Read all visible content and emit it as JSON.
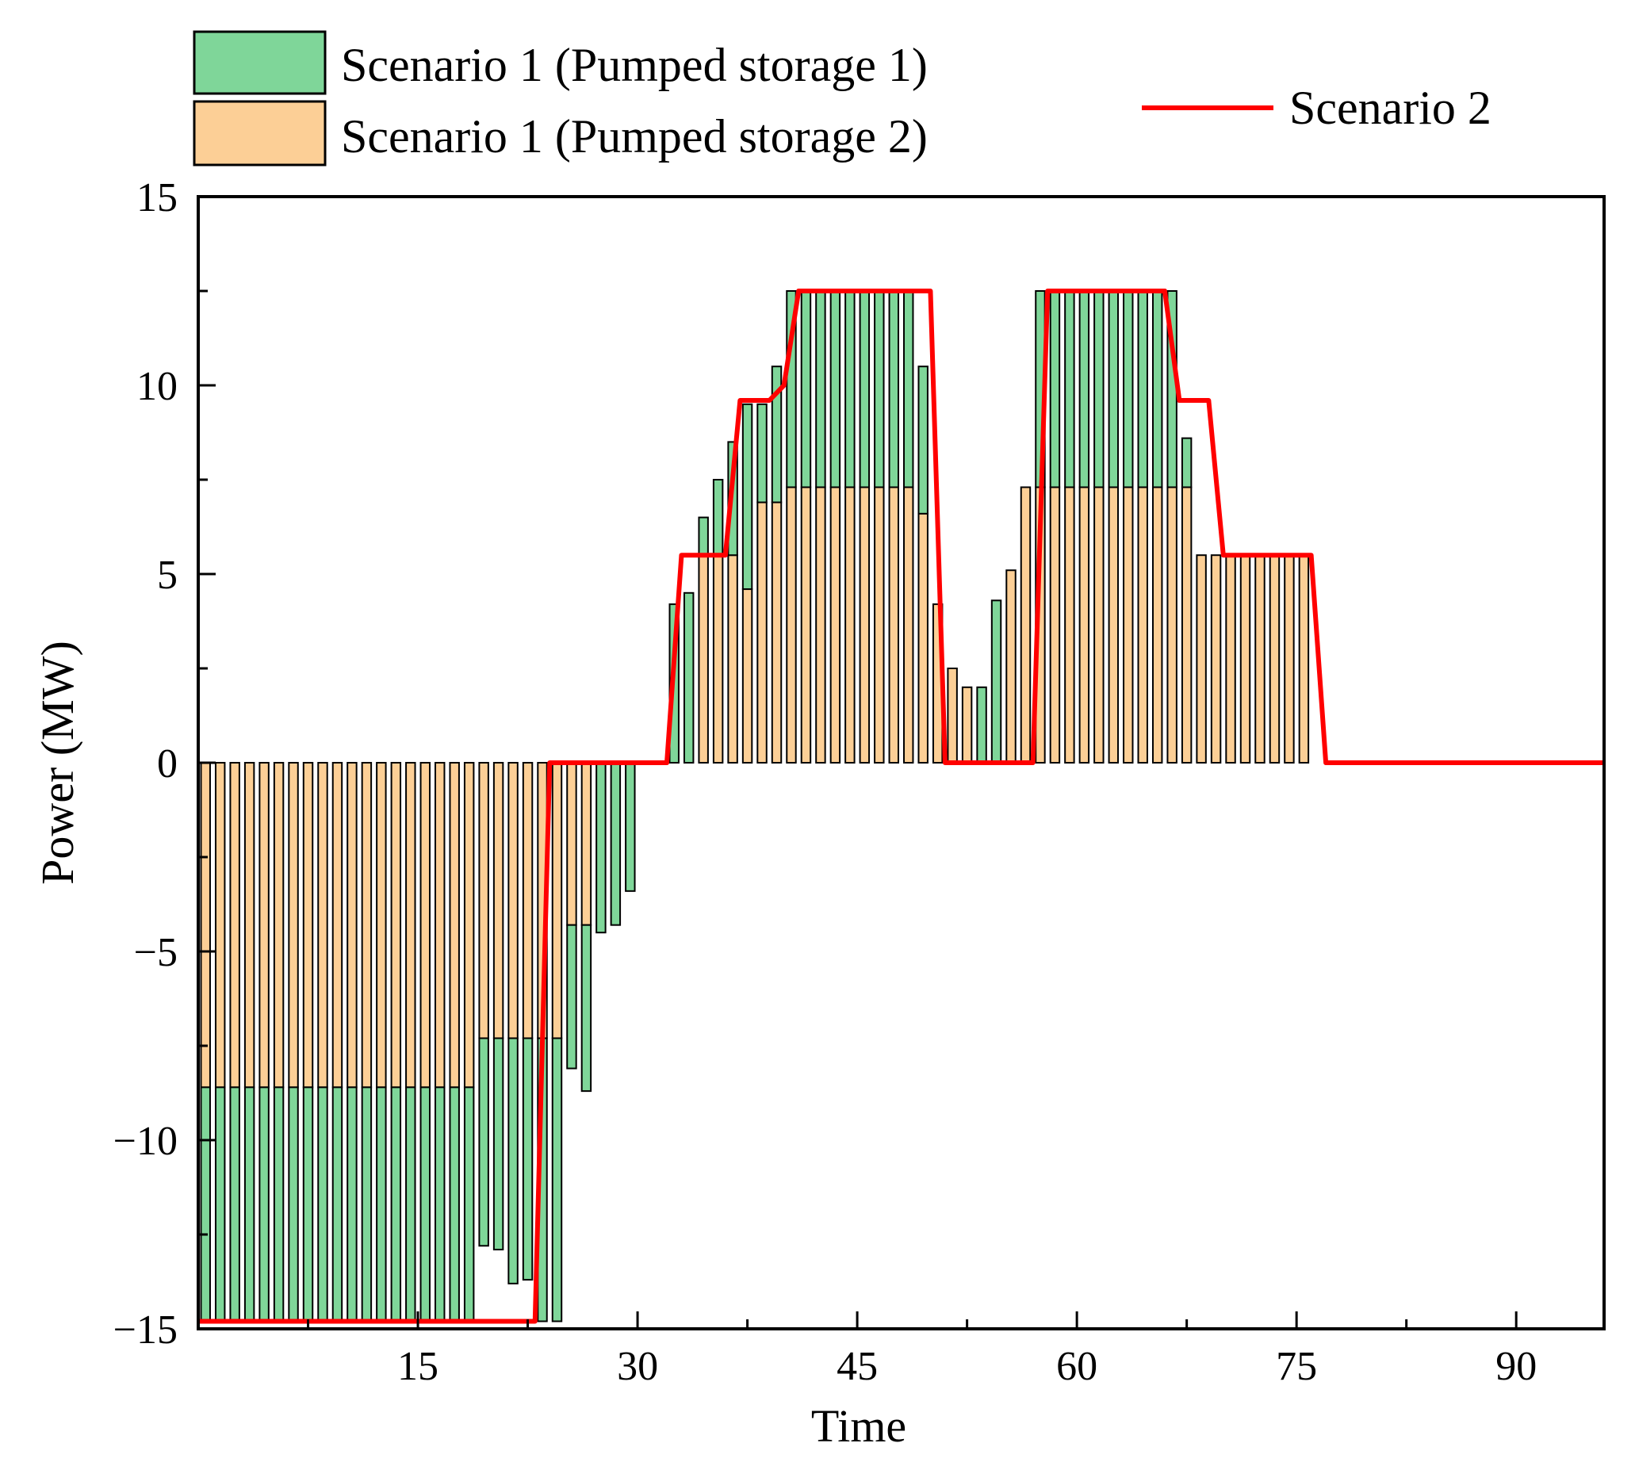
{
  "chart_data": {
    "type": "bar",
    "xlabel": "Time",
    "ylabel": "Power (MW)",
    "xlim": [
      0,
      96
    ],
    "ylim": [
      -15,
      15
    ],
    "xticks": [
      15,
      30,
      45,
      60,
      75,
      90
    ],
    "xtick_labels": [
      "15",
      "30",
      "45",
      "60",
      "75",
      "90"
    ],
    "yticks": [
      -15,
      -10,
      -5,
      0,
      5,
      10,
      15
    ],
    "ytick_labels": [
      "−15",
      "−10",
      "−5",
      "0",
      "5",
      "10",
      "15"
    ],
    "legend_position": "top",
    "series": [
      {
        "name": "Scenario 1 (Pumped storage 1)",
        "type": "bar",
        "color": "#7fd699",
        "x": [
          1,
          2,
          3,
          4,
          5,
          6,
          7,
          8,
          9,
          10,
          11,
          12,
          13,
          14,
          15,
          16,
          17,
          18,
          19,
          20,
          21,
          22,
          23,
          24,
          25,
          26,
          27,
          28,
          29,
          30,
          31,
          32,
          33,
          34,
          35,
          36,
          37,
          38,
          39,
          40,
          41,
          42,
          43,
          44,
          45,
          46,
          47,
          48,
          49,
          50,
          51,
          52,
          53,
          54,
          55,
          56,
          57,
          58,
          59,
          60,
          61,
          62,
          63,
          64,
          65,
          66,
          67,
          68,
          69,
          70,
          71,
          72,
          73,
          74,
          75,
          76
        ],
        "values": [
          -6.2,
          -6.2,
          -6.2,
          -6.2,
          -6.2,
          -6.2,
          -6.2,
          -6.2,
          -6.2,
          -6.2,
          -6.2,
          -6.2,
          -6.2,
          -6.2,
          -6.2,
          -6.2,
          -6.2,
          -6.2,
          -6.2,
          -5.5,
          -5.6,
          -6.5,
          -6.4,
          -7.5,
          -7.5,
          -3.8,
          -4.4,
          -4.5,
          -4.3,
          -3.4,
          0,
          0,
          4.2,
          4.5,
          1.0,
          2.0,
          3.0,
          4.9,
          2.6,
          3.6,
          5.2,
          5.2,
          5.2,
          5.2,
          5.2,
          5.2,
          5.2,
          5.2,
          5.2,
          3.9,
          0,
          0,
          0,
          2.0,
          4.3,
          0,
          0,
          5.2,
          5.2,
          5.2,
          5.2,
          5.2,
          5.2,
          5.2,
          5.2,
          5.2,
          5.2,
          1.3,
          0,
          0,
          0,
          0,
          0,
          0,
          0,
          0
        ]
      },
      {
        "name": "Scenario 1 (Pumped storage 2)",
        "type": "bar",
        "color": "#fccf96",
        "x": [
          1,
          2,
          3,
          4,
          5,
          6,
          7,
          8,
          9,
          10,
          11,
          12,
          13,
          14,
          15,
          16,
          17,
          18,
          19,
          20,
          21,
          22,
          23,
          24,
          25,
          26,
          27,
          28,
          29,
          30,
          31,
          32,
          33,
          34,
          35,
          36,
          37,
          38,
          39,
          40,
          41,
          42,
          43,
          44,
          45,
          46,
          47,
          48,
          49,
          50,
          51,
          52,
          53,
          54,
          55,
          56,
          57,
          58,
          59,
          60,
          61,
          62,
          63,
          64,
          65,
          66,
          67,
          68,
          69,
          70,
          71,
          72,
          73,
          74,
          75,
          76
        ],
        "values": [
          -8.6,
          -8.6,
          -8.6,
          -8.6,
          -8.6,
          -8.6,
          -8.6,
          -8.6,
          -8.6,
          -8.6,
          -8.6,
          -8.6,
          -8.6,
          -8.6,
          -8.6,
          -8.6,
          -8.6,
          -8.6,
          -8.6,
          -7.3,
          -7.3,
          -7.3,
          -7.3,
          -7.3,
          -7.3,
          -4.3,
          -4.3,
          0,
          0,
          0,
          0,
          0,
          0,
          0,
          5.5,
          5.5,
          5.5,
          4.6,
          6.9,
          6.9,
          7.3,
          7.3,
          7.3,
          7.3,
          7.3,
          7.3,
          7.3,
          7.3,
          7.3,
          6.6,
          4.2,
          2.5,
          2.0,
          0,
          0,
          5.1,
          7.3,
          7.3,
          7.3,
          7.3,
          7.3,
          7.3,
          7.3,
          7.3,
          7.3,
          7.3,
          7.3,
          7.3,
          5.5,
          5.5,
          5.5,
          5.5,
          5.5,
          5.5,
          5.5,
          5.5
        ]
      },
      {
        "name": "Scenario 2",
        "type": "line",
        "color": "#ff0000",
        "x": [
          0,
          23,
          24,
          32,
          33,
          36,
          37,
          38,
          39,
          40,
          41,
          50,
          51,
          57,
          58,
          66,
          67,
          69,
          70,
          76,
          77,
          96
        ],
        "values": [
          -14.8,
          -14.8,
          0,
          0,
          5.5,
          5.5,
          9.6,
          9.6,
          9.6,
          10.0,
          12.5,
          12.5,
          0,
          0,
          12.5,
          12.5,
          9.6,
          9.6,
          5.5,
          5.5,
          0,
          0
        ]
      }
    ]
  }
}
